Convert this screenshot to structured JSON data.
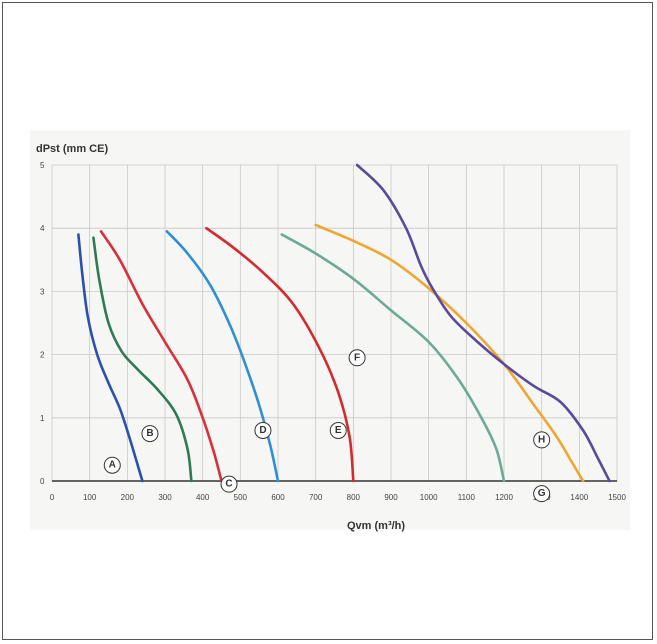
{
  "chart_data": {
    "type": "line",
    "ylabel": "dPst (mm CE)",
    "xlabel": "Qvm (m³/h)",
    "xlim": [
      0,
      1500
    ],
    "ylim": [
      0,
      5
    ],
    "x_ticks": [
      0,
      100,
      200,
      300,
      400,
      500,
      600,
      700,
      800,
      900,
      1000,
      1100,
      1200,
      1300,
      1400,
      1500
    ],
    "y_ticks": [
      0,
      1,
      2,
      3,
      4,
      5
    ],
    "grid": true,
    "series": [
      {
        "name": "A",
        "color": "#2b4fb0",
        "label_at": [
          160,
          0.25
        ],
        "points": [
          [
            70,
            3.9
          ],
          [
            80,
            3.3
          ],
          [
            95,
            2.6
          ],
          [
            120,
            2.0
          ],
          [
            150,
            1.55
          ],
          [
            180,
            1.15
          ],
          [
            205,
            0.7
          ],
          [
            225,
            0.3
          ],
          [
            240,
            0
          ]
        ]
      },
      {
        "name": "B",
        "color": "#2e7a52",
        "label_at": [
          260,
          0.75
        ],
        "points": [
          [
            110,
            3.85
          ],
          [
            125,
            3.2
          ],
          [
            150,
            2.5
          ],
          [
            185,
            2.05
          ],
          [
            230,
            1.75
          ],
          [
            280,
            1.45
          ],
          [
            330,
            1.05
          ],
          [
            360,
            0.5
          ],
          [
            370,
            0
          ]
        ]
      },
      {
        "name": "C",
        "color": "#d8303a",
        "label_at": [
          470,
          -0.05
        ],
        "points": [
          [
            130,
            3.95
          ],
          [
            180,
            3.5
          ],
          [
            240,
            2.8
          ],
          [
            300,
            2.2
          ],
          [
            360,
            1.6
          ],
          [
            400,
            1.0
          ],
          [
            430,
            0.45
          ],
          [
            450,
            0
          ]
        ]
      },
      {
        "name": "D",
        "color": "#2f8fd6",
        "label_at": [
          560,
          0.8
        ],
        "points": [
          [
            305,
            3.95
          ],
          [
            360,
            3.6
          ],
          [
            420,
            3.1
          ],
          [
            470,
            2.5
          ],
          [
            510,
            1.9
          ],
          [
            550,
            1.2
          ],
          [
            580,
            0.55
          ],
          [
            600,
            0
          ]
        ]
      },
      {
        "name": "E",
        "color": "#d42a2e",
        "label_at": [
          760,
          0.8
        ],
        "points": [
          [
            410,
            4.0
          ],
          [
            480,
            3.7
          ],
          [
            560,
            3.3
          ],
          [
            640,
            2.8
          ],
          [
            710,
            2.1
          ],
          [
            760,
            1.4
          ],
          [
            790,
            0.7
          ],
          [
            800,
            0
          ]
        ]
      },
      {
        "name": "F",
        "color": "#6aaa98",
        "label_at": [
          810,
          1.95
        ],
        "points": [
          [
            610,
            3.9
          ],
          [
            700,
            3.6
          ],
          [
            800,
            3.2
          ],
          [
            900,
            2.7
          ],
          [
            1000,
            2.2
          ],
          [
            1080,
            1.6
          ],
          [
            1140,
            1.0
          ],
          [
            1180,
            0.5
          ],
          [
            1200,
            0
          ]
        ]
      },
      {
        "name": "G",
        "color": "#f0a530",
        "label_at": [
          1300,
          -0.2
        ],
        "points": [
          [
            700,
            4.05
          ],
          [
            800,
            3.8
          ],
          [
            900,
            3.5
          ],
          [
            1000,
            3.05
          ],
          [
            1100,
            2.5
          ],
          [
            1200,
            1.85
          ],
          [
            1280,
            1.2
          ],
          [
            1340,
            0.7
          ],
          [
            1380,
            0.3
          ],
          [
            1410,
            0
          ]
        ]
      },
      {
        "name": "H",
        "color": "#5a4a9c",
        "label_at": [
          1300,
          0.65
        ],
        "points": [
          [
            810,
            5.0
          ],
          [
            880,
            4.6
          ],
          [
            940,
            4.0
          ],
          [
            980,
            3.4
          ],
          [
            1010,
            3.05
          ],
          [
            1060,
            2.6
          ],
          [
            1130,
            2.2
          ],
          [
            1200,
            1.85
          ],
          [
            1280,
            1.5
          ],
          [
            1350,
            1.25
          ],
          [
            1410,
            0.8
          ],
          [
            1450,
            0.35
          ],
          [
            1480,
            0
          ]
        ]
      }
    ]
  }
}
